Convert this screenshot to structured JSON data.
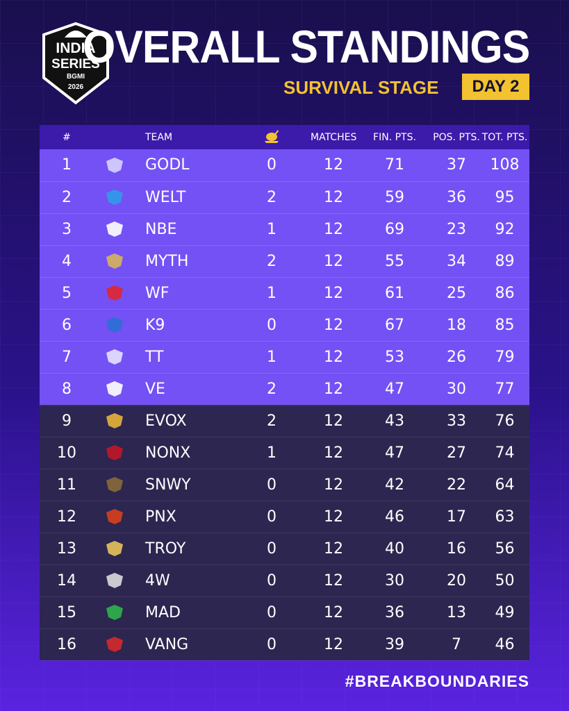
{
  "header": {
    "logo_text": [
      "INDIA",
      "SERIES",
      "BGMI",
      "2026"
    ],
    "title": "OVERALL STANDINGS",
    "subtitle": "SURVIVAL STAGE",
    "day_badge": "DAY 2"
  },
  "colors": {
    "accent_yellow": "#f2c230",
    "top_row_bg": "#7451f5",
    "bottom_row_bg": "#2c2650",
    "header_row_bg": "#3c1aaa"
  },
  "table": {
    "columns": [
      "#",
      "TEAM",
      "MATCHES",
      "FIN. PTS.",
      "POS. PTS.",
      "TOT. PTS."
    ],
    "chicken_column_icon": "chicken-dinner-icon",
    "rows": [
      {
        "rank": "1",
        "team": "GODL",
        "wins": "0",
        "matches": "12",
        "fin": "71",
        "pos": "37",
        "tot": "108",
        "logo_color": "#d7d2ff"
      },
      {
        "rank": "2",
        "team": "WELT",
        "wins": "2",
        "matches": "12",
        "fin": "59",
        "pos": "36",
        "tot": "95",
        "logo_color": "#2f9be8"
      },
      {
        "rank": "3",
        "team": "NBE",
        "wins": "1",
        "matches": "12",
        "fin": "69",
        "pos": "23",
        "tot": "92",
        "logo_color": "#ffffff"
      },
      {
        "rank": "4",
        "team": "MYTH",
        "wins": "2",
        "matches": "12",
        "fin": "55",
        "pos": "34",
        "tot": "89",
        "logo_color": "#d6b45c"
      },
      {
        "rank": "5",
        "team": "WF",
        "wins": "1",
        "matches": "12",
        "fin": "61",
        "pos": "25",
        "tot": "86",
        "logo_color": "#e0262e"
      },
      {
        "rank": "6",
        "team": "K9",
        "wins": "0",
        "matches": "12",
        "fin": "67",
        "pos": "18",
        "tot": "85",
        "logo_color": "#2b6fd6"
      },
      {
        "rank": "7",
        "team": "TT",
        "wins": "1",
        "matches": "12",
        "fin": "53",
        "pos": "26",
        "tot": "79",
        "logo_color": "#e6e2ff"
      },
      {
        "rank": "8",
        "team": "VE",
        "wins": "2",
        "matches": "12",
        "fin": "47",
        "pos": "30",
        "tot": "77",
        "logo_color": "#ffffff"
      },
      {
        "rank": "9",
        "team": "EVOX",
        "wins": "2",
        "matches": "12",
        "fin": "43",
        "pos": "33",
        "tot": "76",
        "logo_color": "#e6b43a"
      },
      {
        "rank": "10",
        "team": "NONX",
        "wins": "1",
        "matches": "12",
        "fin": "47",
        "pos": "27",
        "tot": "74",
        "logo_color": "#c01826"
      },
      {
        "rank": "11",
        "team": "SNWY",
        "wins": "0",
        "matches": "12",
        "fin": "42",
        "pos": "22",
        "tot": "64",
        "logo_color": "#8a6a3a"
      },
      {
        "rank": "12",
        "team": "PNX",
        "wins": "0",
        "matches": "12",
        "fin": "46",
        "pos": "17",
        "tot": "63",
        "logo_color": "#d8401c"
      },
      {
        "rank": "13",
        "team": "TROY",
        "wins": "0",
        "matches": "12",
        "fin": "40",
        "pos": "16",
        "tot": "56",
        "logo_color": "#e8c45a"
      },
      {
        "rank": "14",
        "team": "4W",
        "wins": "0",
        "matches": "12",
        "fin": "30",
        "pos": "20",
        "tot": "50",
        "logo_color": "#dcdcdc"
      },
      {
        "rank": "15",
        "team": "MAD",
        "wins": "0",
        "matches": "12",
        "fin": "36",
        "pos": "13",
        "tot": "49",
        "logo_color": "#2fb34a"
      },
      {
        "rank": "16",
        "team": "VANG",
        "wins": "0",
        "matches": "12",
        "fin": "39",
        "pos": "7",
        "tot": "46",
        "logo_color": "#d42a2a"
      }
    ]
  },
  "footer": {
    "hashtag": "#BREAKBOUNDARIES"
  }
}
